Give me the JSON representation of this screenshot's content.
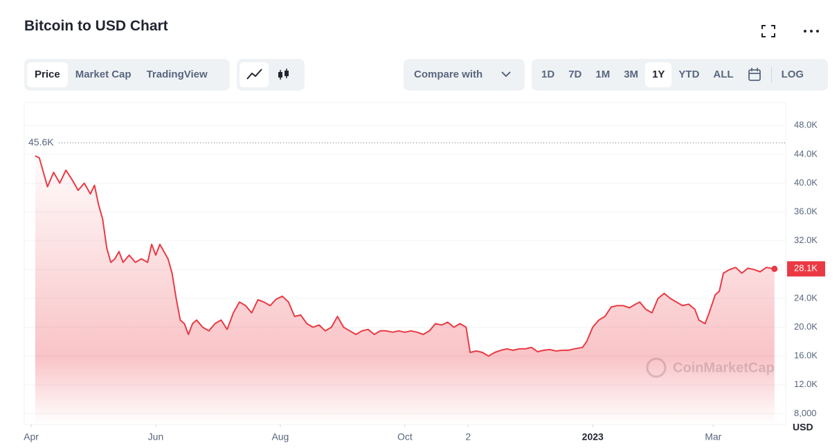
{
  "header": {
    "title": "Bitcoin to USD Chart"
  },
  "toolbar": {
    "tabs": [
      "Price",
      "Market Cap",
      "TradingView"
    ],
    "compare": "Compare with",
    "ranges": [
      "1D",
      "7D",
      "1M",
      "3M",
      "1Y",
      "YTD",
      "ALL"
    ],
    "log": "LOG"
  },
  "chart_data": {
    "type": "line",
    "color": "#ea3943",
    "unit": "USD",
    "watermark": "CoinMarketCap",
    "xlim": [
      -3.4,
      369.5
    ],
    "xticks": [
      {
        "value": 0,
        "label": "Apr"
      },
      {
        "value": 61,
        "label": "Jun"
      },
      {
        "value": 122,
        "label": "Aug"
      },
      {
        "value": 183,
        "label": "Oct"
      },
      {
        "value": 214,
        "label": "2"
      },
      {
        "value": 275,
        "label": "2023"
      },
      {
        "value": 334,
        "label": "Mar"
      }
    ],
    "ylim": [
      6500,
      51200
    ],
    "yticks": [
      {
        "value": 8000,
        "label": "8,000"
      },
      {
        "value": 12000,
        "label": "12.0K"
      },
      {
        "value": 16000,
        "label": "16.0K"
      },
      {
        "value": 20000,
        "label": "20.0K"
      },
      {
        "value": 24000,
        "label": "24.0K"
      },
      {
        "value": 28000,
        "label": "28.0K"
      },
      {
        "value": 32000,
        "label": "32.0K"
      },
      {
        "value": 36000,
        "label": "36.0K"
      },
      {
        "value": 40000,
        "label": "40.0K"
      },
      {
        "value": 44000,
        "label": "44.0K"
      },
      {
        "value": 48000,
        "label": "48.0K"
      }
    ],
    "grid": true,
    "high": {
      "value": 45600,
      "label": "45.6K"
    },
    "last": {
      "value": 28100,
      "label": "28.1K"
    },
    "x": [
      2,
      4,
      6,
      8,
      11,
      14,
      17,
      20,
      23,
      26,
      29,
      31,
      33,
      35,
      37,
      39,
      41,
      43,
      45,
      48,
      51,
      54,
      57,
      59,
      61,
      63,
      65,
      67,
      69,
      71,
      73,
      75,
      77,
      79,
      81,
      84,
      87,
      90,
      93,
      96,
      99,
      102,
      105,
      108,
      111,
      114,
      117,
      120,
      123,
      126,
      129,
      132,
      135,
      138,
      141,
      144,
      147,
      150,
      153,
      156,
      159,
      162,
      165,
      168,
      171,
      174,
      177,
      180,
      183,
      186,
      189,
      192,
      195,
      198,
      201,
      204,
      207,
      210,
      213,
      215,
      218,
      221,
      224,
      227,
      230,
      233,
      236,
      239,
      242,
      245,
      248,
      251,
      254,
      257,
      260,
      263,
      266,
      270,
      272,
      275,
      278,
      281,
      284,
      287,
      290,
      293,
      296,
      298,
      301,
      304,
      307,
      310,
      313,
      316,
      319,
      322,
      325,
      327,
      330,
      332,
      335,
      337,
      339,
      342,
      345,
      348,
      351,
      354,
      357,
      360,
      364
    ],
    "values": [
      43800,
      43500,
      41500,
      39500,
      41500,
      40000,
      41800,
      40500,
      39000,
      40000,
      38500,
      39700,
      37000,
      35000,
      31000,
      29000,
      29500,
      30500,
      29000,
      30000,
      29000,
      29500,
      29000,
      31500,
      30000,
      31500,
      30500,
      29500,
      27500,
      24000,
      21000,
      20500,
      19000,
      20500,
      21000,
      20000,
      19500,
      20500,
      21000,
      19700,
      22000,
      23500,
      23000,
      22000,
      23800,
      23500,
      23000,
      23900,
      24300,
      23500,
      21500,
      21700,
      20500,
      20000,
      20300,
      19500,
      20000,
      21500,
      20000,
      19500,
      19000,
      19500,
      19700,
      19000,
      19500,
      19500,
      19300,
      19500,
      19300,
      19500,
      19300,
      19000,
      19500,
      20500,
      20300,
      20700,
      20000,
      20500,
      20000,
      16500,
      16700,
      16500,
      16000,
      16500,
      16800,
      17000,
      16800,
      17000,
      17000,
      17200,
      16600,
      16800,
      16900,
      16700,
      16800,
      16800,
      17000,
      17200,
      18000,
      20000,
      21000,
      21500,
      22800,
      23000,
      23000,
      22700,
      23200,
      23500,
      22500,
      22000,
      24000,
      24700,
      24000,
      23500,
      23000,
      23200,
      22500,
      21000,
      20500,
      22000,
      24500,
      25000,
      27500,
      28000,
      28300,
      27500,
      28200,
      28000,
      27700,
      28300,
      28100
    ]
  }
}
